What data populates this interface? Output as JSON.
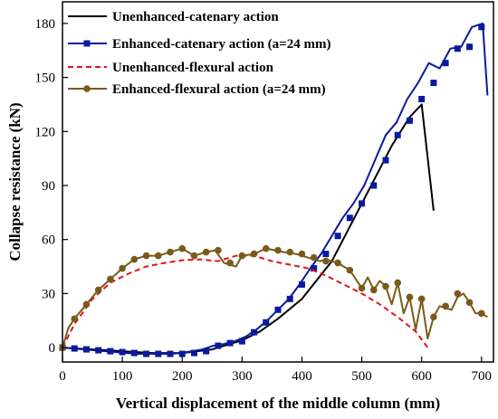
{
  "chart_data": {
    "type": "line",
    "xlabel": "Vertical displacement of the middle column (mm)",
    "ylabel": "Collapse resistance (kN)",
    "xlim": [
      0,
      720
    ],
    "ylim": [
      -8,
      192
    ],
    "xticks": [
      0,
      100,
      200,
      300,
      400,
      500,
      600,
      700
    ],
    "yticks": [
      0,
      30,
      60,
      90,
      120,
      150,
      180
    ],
    "grid": false,
    "legend_position": "top-left",
    "series": [
      {
        "name": "Unenhanced-catenary action",
        "color": "#000000",
        "style": "solid",
        "marker": "none",
        "x": [
          0,
          50,
          100,
          150,
          200,
          250,
          300,
          330,
          360,
          400,
          450,
          500,
          550,
          580,
          600,
          620
        ],
        "y": [
          0,
          -1,
          -2,
          -3,
          -3,
          -1,
          4,
          9,
          16,
          27,
          48,
          80,
          112,
          128,
          135,
          76
        ]
      },
      {
        "name": "Enhanced-catenary action (a=24 mm)",
        "color": "#0a1a9e",
        "style": "solid",
        "marker": "square",
        "x": [
          0,
          18,
          36,
          54,
          72,
          90,
          108,
          126,
          144,
          162,
          180,
          198,
          216,
          234,
          252,
          270,
          288,
          306,
          324,
          342,
          360,
          378,
          396,
          414,
          432,
          450,
          468,
          486,
          504,
          522,
          540,
          558,
          576,
          594,
          612,
          630,
          648,
          666,
          684,
          702,
          710
        ],
        "y": [
          0,
          -0.5,
          -1,
          -1.5,
          -2,
          -2.5,
          -3,
          -3.5,
          -3.5,
          -3.5,
          -3.5,
          -3,
          -2,
          -1,
          1,
          2,
          3.5,
          6,
          10,
          15,
          21,
          27,
          35,
          44,
          52,
          62,
          72,
          80,
          90,
          104,
          118,
          125,
          138,
          147,
          158,
          155,
          166,
          167,
          178,
          180,
          140
        ],
        "marker_x": [
          0,
          20,
          40,
          60,
          80,
          100,
          120,
          140,
          160,
          180,
          200,
          220,
          240,
          260,
          280,
          300,
          320,
          340,
          360,
          380,
          400,
          420,
          440,
          460,
          480,
          500,
          520,
          540,
          560,
          580,
          600,
          620,
          640,
          660,
          680,
          700
        ],
        "marker_y": [
          0,
          -0.5,
          -1,
          -1.5,
          -2,
          -2.5,
          -3,
          -3.5,
          -3.5,
          -3.5,
          -3.5,
          -3,
          -2,
          1,
          2.5,
          3.5,
          8.5,
          14,
          21,
          27,
          35,
          44,
          52,
          62,
          72,
          80,
          90,
          104,
          118,
          126,
          138,
          147,
          158,
          166,
          167,
          178,
          180
        ]
      },
      {
        "name": "Unenhanced-flexural action",
        "color": "#e0151b",
        "style": "dashed",
        "marker": "none",
        "x": [
          0,
          20,
          50,
          80,
          110,
          140,
          170,
          200,
          230,
          260,
          290,
          320,
          350,
          380,
          410,
          440,
          470,
          500,
          530,
          560,
          590,
          610
        ],
        "y": [
          0,
          13,
          27,
          36,
          41,
          45,
          47,
          48.5,
          49,
          48,
          51,
          51,
          48,
          46,
          44,
          40,
          35,
          30,
          24,
          17,
          9,
          0
        ]
      },
      {
        "name": "Enhanced-flexural action (a=24 mm)",
        "color": "#7a5a1a",
        "style": "solid",
        "marker": "circle",
        "x": [
          0,
          10,
          20,
          40,
          60,
          80,
          100,
          120,
          140,
          160,
          180,
          200,
          220,
          240,
          255,
          270,
          290,
          300,
          320,
          340,
          355,
          370,
          390,
          410,
          430,
          440,
          460,
          480,
          500,
          510,
          520,
          530,
          540,
          550,
          560,
          570,
          580,
          590,
          600,
          610,
          620,
          630,
          650,
          660,
          670,
          680,
          690,
          700,
          710
        ],
        "y": [
          0,
          11,
          16,
          24,
          32,
          38,
          44,
          49,
          51,
          51,
          53,
          55,
          51,
          53,
          54,
          47,
          45,
          51,
          52,
          55,
          54,
          53,
          52,
          50,
          48,
          49,
          47,
          43,
          33,
          39,
          32,
          37,
          34,
          24,
          36,
          19,
          28,
          10,
          27,
          5,
          17,
          23,
          21,
          28,
          30,
          25,
          19,
          19,
          17
        ],
        "marker_x": [
          0,
          20,
          40,
          60,
          80,
          100,
          120,
          140,
          160,
          180,
          200,
          220,
          240,
          260,
          280,
          300,
          320,
          340,
          360,
          380,
          400,
          420,
          440,
          460,
          480,
          500,
          520,
          540,
          560,
          580,
          600,
          620,
          640,
          660,
          680,
          700
        ],
        "marker_y": [
          0,
          16,
          24,
          32,
          38,
          44,
          49,
          51,
          51,
          53,
          55,
          51,
          53,
          54,
          47,
          51,
          52,
          55,
          54,
          53,
          52,
          50,
          48,
          47,
          43,
          33,
          32,
          34,
          36,
          28,
          27,
          17,
          23,
          30,
          25,
          19
        ]
      }
    ]
  }
}
